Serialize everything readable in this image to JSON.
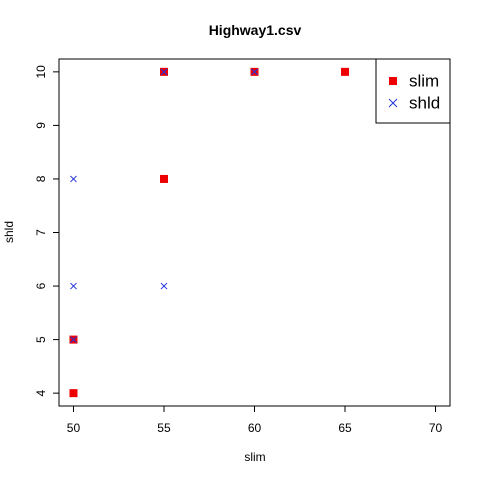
{
  "chart_data": {
    "type": "scatter",
    "title": "Highway1.csv",
    "xlabel": "slim",
    "ylabel": "shld",
    "xlim": [
      49.2,
      70.8
    ],
    "ylim": [
      3.76,
      10.24
    ],
    "x_ticks": [
      50,
      55,
      60,
      65,
      70
    ],
    "y_ticks": [
      4,
      5,
      6,
      7,
      8,
      9,
      10
    ],
    "grid": false,
    "legend_position": "top-right",
    "series": [
      {
        "name": "slim",
        "marker": "filled-square",
        "color": "#ee0000",
        "points": [
          {
            "x": 50,
            "y": 4
          },
          {
            "x": 50,
            "y": 5
          },
          {
            "x": 55,
            "y": 8
          },
          {
            "x": 55,
            "y": 10
          },
          {
            "x": 60,
            "y": 10
          },
          {
            "x": 65,
            "y": 10
          }
        ]
      },
      {
        "name": "shld",
        "marker": "cross",
        "color": "#2233dd",
        "points": [
          {
            "x": 50,
            "y": 5
          },
          {
            "x": 50,
            "y": 6
          },
          {
            "x": 50,
            "y": 8
          },
          {
            "x": 55,
            "y": 6
          },
          {
            "x": 55,
            "y": 10
          },
          {
            "x": 60,
            "y": 10
          }
        ]
      }
    ]
  }
}
